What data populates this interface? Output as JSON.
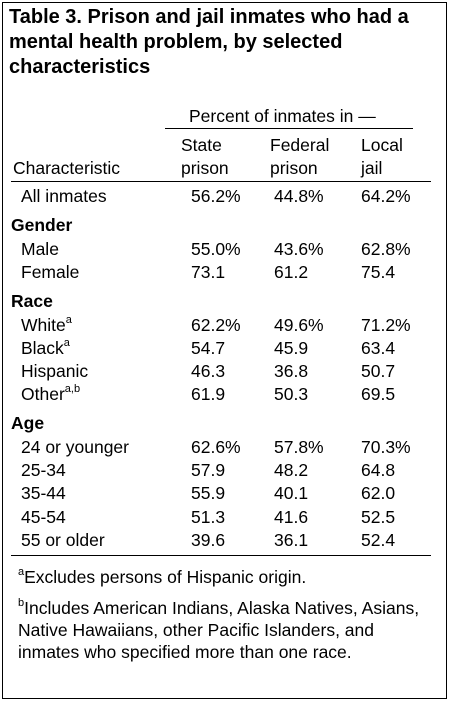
{
  "title": "Table 3. Prison and jail inmates who had a mental health problem, by selected characteristics",
  "header": {
    "spanner": "Percent of inmates in —",
    "characteristic": "Characteristic",
    "col1_line1": "State",
    "col1_line2": "prison",
    "col2_line1": "Federal",
    "col2_line2": "prison",
    "col3_line1": "Local",
    "col3_line2": "jail"
  },
  "all": {
    "label": "All inmates",
    "values": [
      "56.2%",
      "44.8%",
      "64.2%"
    ]
  },
  "sections": {
    "gender": {
      "heading": "Gender",
      "rows": [
        {
          "label": "Male",
          "sup": "",
          "values": [
            "55.0%",
            "43.6%",
            "62.8%"
          ]
        },
        {
          "label": "Female",
          "sup": "",
          "values": [
            "73.1",
            "61.2",
            "75.4"
          ]
        }
      ]
    },
    "race": {
      "heading": "Race",
      "rows": [
        {
          "label": "White",
          "sup": "a",
          "values": [
            "62.2%",
            "49.6%",
            "71.2%"
          ]
        },
        {
          "label": "Black",
          "sup": "a",
          "values": [
            "54.7",
            "45.9",
            "63.4"
          ]
        },
        {
          "label": "Hispanic",
          "sup": "",
          "values": [
            "46.3",
            "36.8",
            "50.7"
          ]
        },
        {
          "label": "Other",
          "sup": "a,b",
          "values": [
            "61.9",
            "50.3",
            "69.5"
          ]
        }
      ]
    },
    "age": {
      "heading": "Age",
      "rows": [
        {
          "label": "24 or younger",
          "sup": "",
          "values": [
            "62.6%",
            "57.8%",
            "70.3%"
          ]
        },
        {
          "label": "25-34",
          "sup": "",
          "values": [
            "57.9",
            "48.2",
            "64.8"
          ]
        },
        {
          "label": "35-44",
          "sup": "",
          "values": [
            "55.9",
            "40.1",
            "62.0"
          ]
        },
        {
          "label": "45-54",
          "sup": "",
          "values": [
            "51.3",
            "41.6",
            "52.5"
          ]
        },
        {
          "label": "55 or older",
          "sup": "",
          "values": [
            "39.6",
            "36.1",
            "52.4"
          ]
        }
      ]
    }
  },
  "footnotes": {
    "a_marker": "a",
    "a_text": "Excludes persons of Hispanic origin.",
    "b_marker": "b",
    "b_text": "Includes American Indians, Alaska Natives, Asians, Native Hawaiians, other Pacific Islanders, and inmates who specified more than one race."
  }
}
